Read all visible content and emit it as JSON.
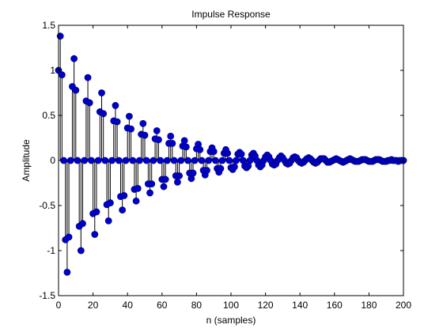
{
  "chart_data": {
    "type": "stem",
    "title": "Impulse Response",
    "xlabel": "n (samples)",
    "ylabel": "Amplitude",
    "xlim": [
      0,
      200
    ],
    "ylim": [
      -1.5,
      1.5
    ],
    "xticks": [
      0,
      20,
      40,
      60,
      80,
      100,
      120,
      140,
      160,
      180,
      200
    ],
    "yticks": [
      -1.5,
      -1,
      -0.5,
      0,
      0.5,
      1,
      1.5
    ],
    "xtick_labels": [
      "0",
      "20",
      "40",
      "60",
      "80",
      "100",
      "120",
      "140",
      "160",
      "180",
      "200"
    ],
    "ytick_labels": [
      "-1.5",
      "-1",
      "-0.5",
      "0",
      "0.5",
      "1",
      "1.5"
    ],
    "grid": false,
    "legend": "none",
    "marker_color": "#0000cc",
    "marker_edge": "#000080",
    "stem_color": "#000000",
    "series": [
      {
        "x": [
          0,
          1,
          2,
          3,
          4,
          5,
          6,
          7,
          8,
          9,
          10,
          11,
          12,
          13,
          14,
          15,
          16,
          17,
          18,
          19,
          20,
          21,
          22,
          23,
          24,
          25,
          26,
          27,
          28,
          29,
          30,
          31,
          32,
          33,
          34,
          35,
          36,
          37,
          38,
          39,
          40,
          41,
          42,
          43,
          44,
          45,
          46,
          47,
          48,
          49,
          50,
          51,
          52,
          53,
          54,
          55,
          56,
          57,
          58,
          59,
          60,
          61,
          62,
          63,
          64,
          65,
          66,
          67,
          68,
          69,
          70,
          71,
          72,
          73,
          74,
          75,
          76,
          77,
          78,
          79,
          80,
          81,
          82,
          83,
          84,
          85,
          86,
          87,
          88,
          89,
          90,
          91,
          92,
          93,
          94,
          95,
          96,
          97,
          98,
          99,
          100,
          101,
          102,
          103,
          104,
          105,
          106,
          107,
          108,
          109,
          110,
          111,
          112,
          113,
          114,
          115,
          116,
          117,
          118,
          119,
          120,
          121,
          122,
          123,
          124,
          125,
          126,
          127,
          128,
          129,
          130,
          131,
          132,
          133,
          134,
          135,
          136,
          137,
          138,
          139,
          140,
          141,
          142,
          143,
          144,
          145,
          146,
          147,
          148,
          149,
          150,
          151,
          152,
          153,
          154,
          155,
          156,
          157,
          158,
          159,
          160,
          161,
          162,
          163,
          164,
          165,
          166,
          167,
          168,
          169,
          170,
          171,
          172,
          173,
          174,
          175,
          176,
          177,
          178,
          179,
          180,
          181,
          182,
          183,
          184,
          185,
          186,
          187,
          188,
          189,
          190,
          191,
          192,
          193,
          194,
          195,
          196,
          197,
          198,
          199,
          200
        ],
        "y": [
          1.0,
          1.38,
          0.95,
          0.0,
          -0.88,
          -1.24,
          -0.85,
          0.0,
          0.82,
          1.13,
          0.78,
          0.0,
          -0.73,
          -1.0,
          -0.7,
          0.0,
          0.66,
          0.92,
          0.64,
          0.0,
          -0.59,
          -0.82,
          -0.57,
          0.0,
          0.54,
          0.75,
          0.52,
          0.0,
          -0.49,
          -0.67,
          -0.47,
          0.0,
          0.44,
          0.61,
          0.43,
          0.0,
          -0.4,
          -0.55,
          -0.39,
          0.0,
          0.36,
          0.49,
          0.35,
          0.0,
          -0.32,
          -0.45,
          -0.31,
          0.0,
          0.29,
          0.41,
          0.28,
          0.0,
          -0.26,
          -0.36,
          -0.26,
          0.0,
          0.24,
          0.33,
          0.23,
          0.0,
          -0.21,
          -0.29,
          -0.21,
          0.0,
          0.19,
          0.27,
          0.19,
          0.0,
          -0.17,
          -0.24,
          -0.17,
          0.0,
          0.16,
          0.22,
          0.15,
          0.0,
          -0.14,
          -0.2,
          -0.14,
          0.0,
          0.13,
          0.18,
          0.12,
          0.0,
          -0.11,
          -0.16,
          -0.11,
          0.0,
          0.1,
          0.14,
          0.1,
          0.0,
          -0.09,
          -0.13,
          -0.09,
          0.0,
          0.08,
          0.12,
          0.08,
          0.0,
          -0.08,
          -0.1,
          -0.07,
          0.0,
          0.07,
          0.09,
          0.07,
          0.0,
          -0.06,
          -0.08,
          -0.06,
          0.0,
          0.06,
          0.08,
          0.05,
          0.0,
          -0.05,
          -0.07,
          -0.05,
          0.0,
          0.04,
          0.06,
          0.04,
          0.0,
          -0.04,
          -0.05,
          -0.04,
          0.0,
          0.03,
          0.05,
          0.03,
          0.0,
          -0.03,
          -0.04,
          -0.03,
          0.0,
          0.03,
          0.04,
          0.03,
          0.0,
          -0.02,
          -0.03,
          -0.02,
          0.0,
          0.02,
          0.03,
          0.02,
          0.0,
          -0.02,
          -0.03,
          -0.02,
          0.0,
          0.02,
          0.02,
          0.02,
          0.0,
          -0.02,
          -0.02,
          -0.01,
          0.0,
          0.01,
          0.02,
          0.01,
          0.0,
          -0.01,
          -0.02,
          -0.01,
          0.0,
          0.01,
          0.02,
          0.01,
          0.0,
          -0.01,
          -0.01,
          -0.01,
          0.0,
          0.01,
          0.01,
          0.01,
          0.0,
          -0.01,
          -0.01,
          -0.01,
          0.0,
          0.01,
          0.01,
          0.01,
          0.0,
          -0.01,
          -0.01,
          -0.01,
          0.0,
          0.0,
          0.01,
          0.0,
          0.0,
          0.0,
          -0.01,
          0.0,
          0.0,
          0.0
        ]
      }
    ]
  }
}
